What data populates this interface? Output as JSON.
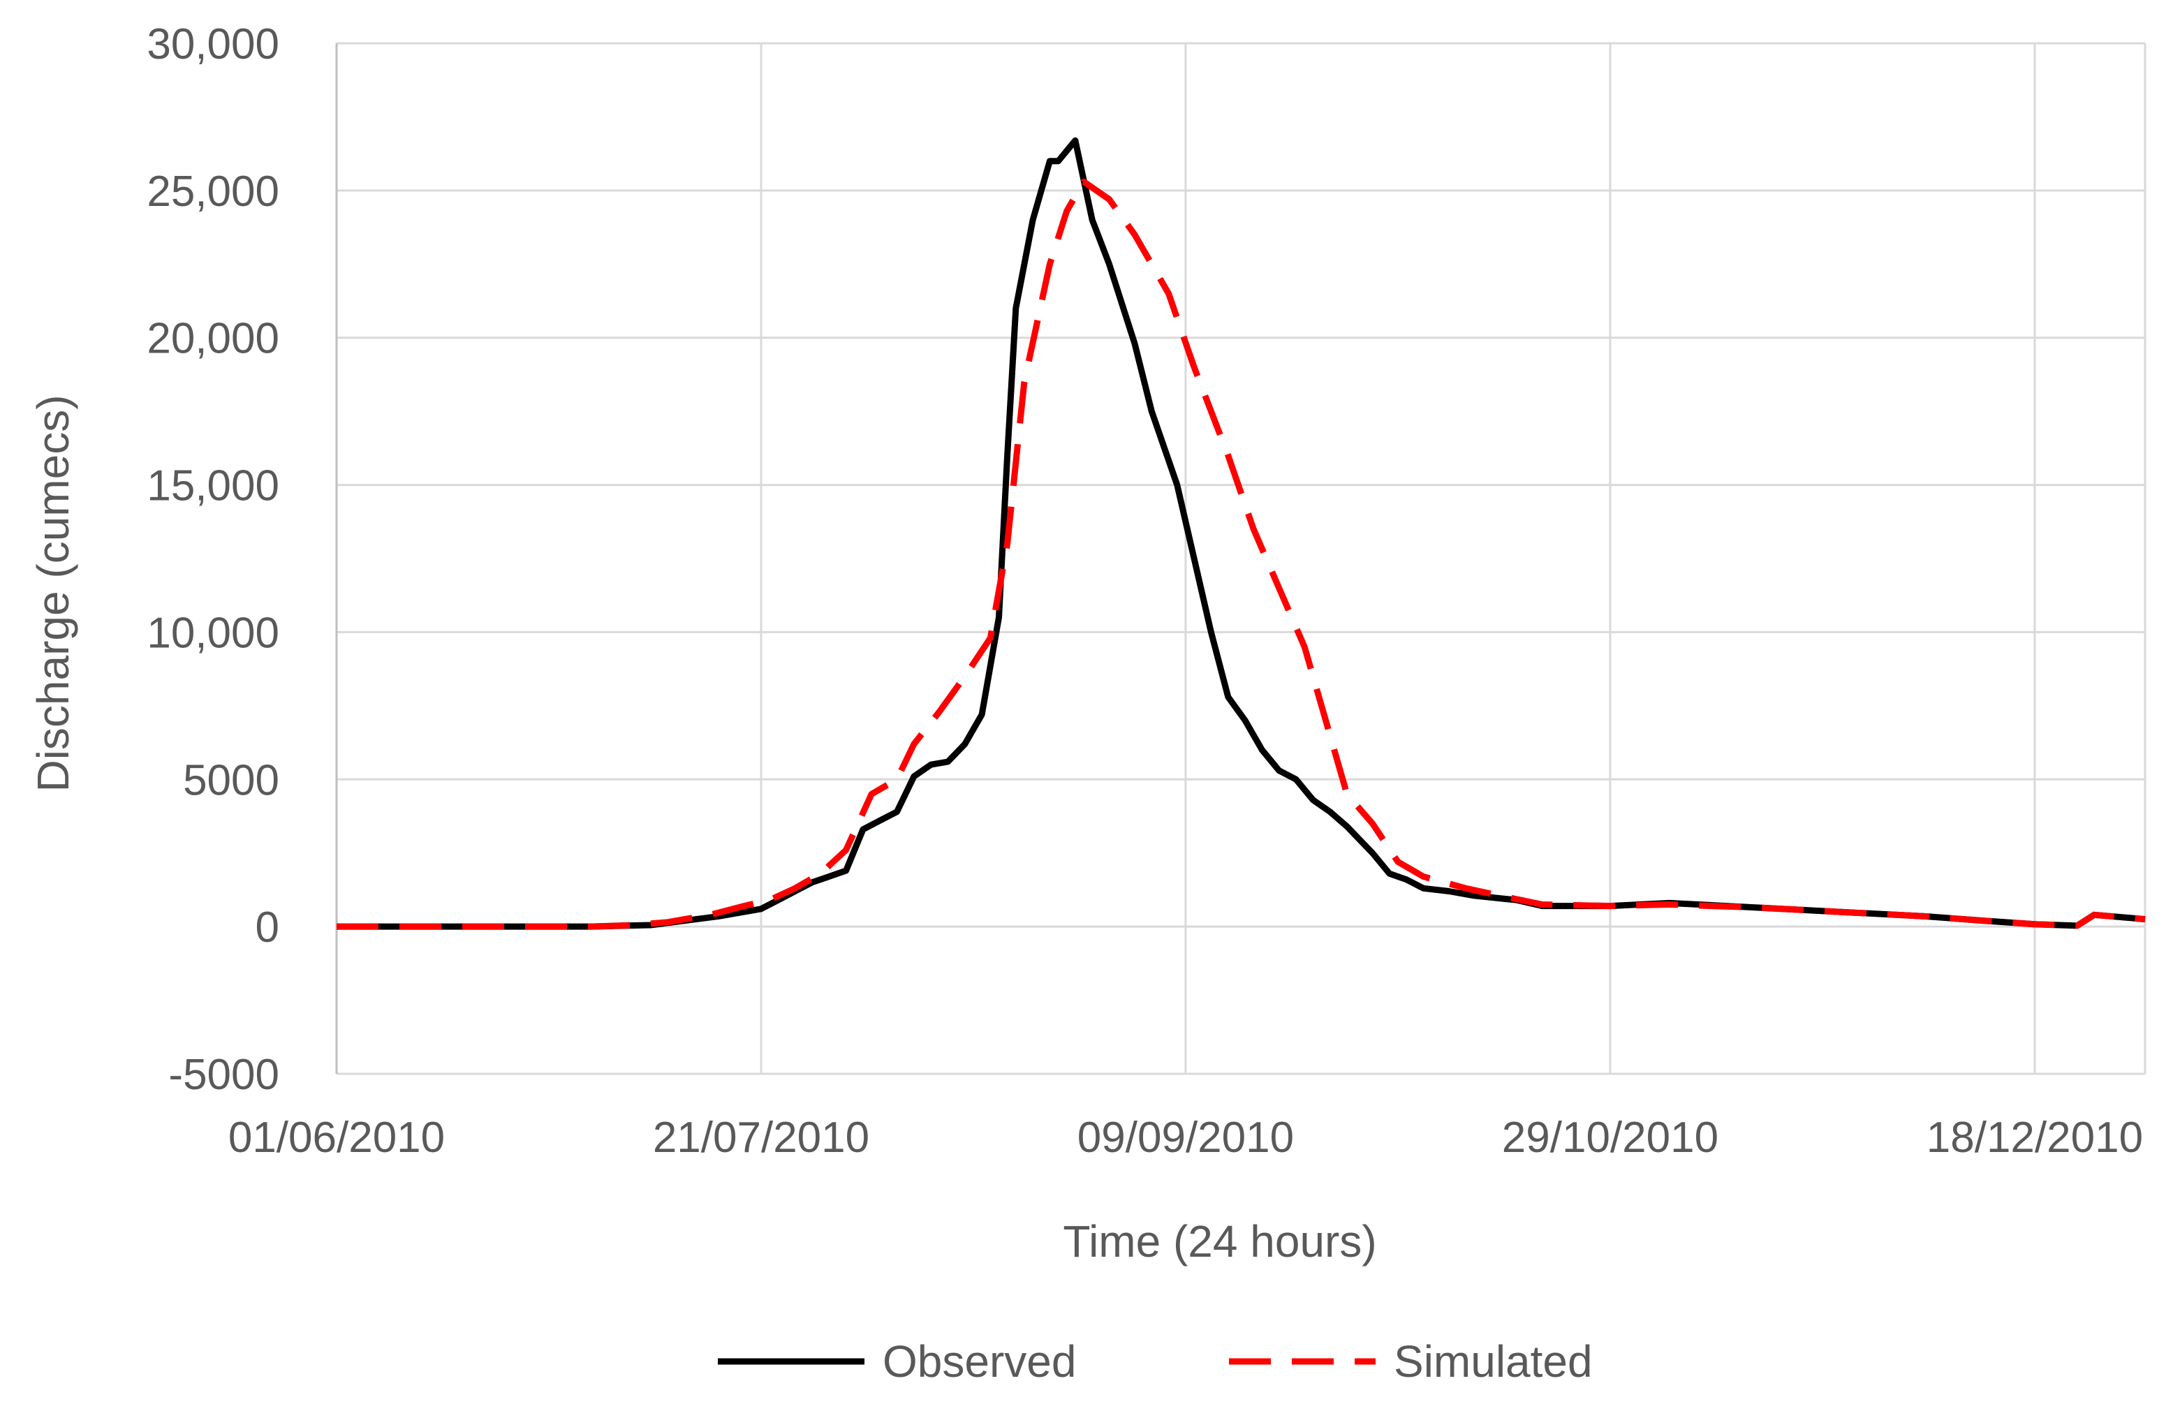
{
  "chart_data": {
    "type": "line",
    "title": "",
    "xlabel": "Time (24 hours)",
    "ylabel": "Discharge (cumecs)",
    "xlim": [
      "2010-06-01",
      "2010-12-31"
    ],
    "ylim": [
      -5000,
      30000
    ],
    "x_ticks": [
      "2010-06-01",
      "2010-07-21",
      "2010-09-09",
      "2010-10-29",
      "2010-12-18"
    ],
    "x_tick_labels": [
      "01/06/2010",
      "21/07/2010",
      "09/09/2010",
      "29/10/2010",
      "18/12/2010"
    ],
    "y_ticks": [
      -5000,
      0,
      5000,
      10000,
      15000,
      20000,
      25000,
      30000
    ],
    "y_tick_labels": [
      "-5000",
      "0",
      "5000",
      "10,000",
      "15,000",
      "20,000",
      "25,000",
      "30,000"
    ],
    "grid": true,
    "legend_position": "bottom",
    "legend_label": "",
    "series": [
      {
        "name": "Observed",
        "color": "#000000",
        "dash": "solid",
        "points": [
          [
            "2010-06-01",
            0
          ],
          [
            "2010-07-01",
            0
          ],
          [
            "2010-07-08",
            50
          ],
          [
            "2010-07-12",
            200
          ],
          [
            "2010-07-16",
            350
          ],
          [
            "2010-07-21",
            600
          ],
          [
            "2010-07-23",
            900
          ],
          [
            "2010-07-25",
            1200
          ],
          [
            "2010-07-27",
            1500
          ],
          [
            "2010-07-29",
            1700
          ],
          [
            "2010-07-31",
            1900
          ],
          [
            "2010-08-02",
            3300
          ],
          [
            "2010-08-04",
            3600
          ],
          [
            "2010-08-06",
            3900
          ],
          [
            "2010-08-08",
            5100
          ],
          [
            "2010-08-10",
            5500
          ],
          [
            "2010-08-12",
            5600
          ],
          [
            "2010-08-14",
            6200
          ],
          [
            "2010-08-16",
            7200
          ],
          [
            "2010-08-18",
            10500
          ],
          [
            "2010-08-19",
            16000
          ],
          [
            "2010-08-20",
            21000
          ],
          [
            "2010-08-22",
            24000
          ],
          [
            "2010-08-24",
            26000
          ],
          [
            "2010-08-25",
            26000
          ],
          [
            "2010-08-27",
            26700
          ],
          [
            "2010-08-29",
            24000
          ],
          [
            "2010-08-31",
            22500
          ],
          [
            "2010-09-03",
            19800
          ],
          [
            "2010-09-05",
            17500
          ],
          [
            "2010-09-08",
            15000
          ],
          [
            "2010-09-10",
            12500
          ],
          [
            "2010-09-12",
            10000
          ],
          [
            "2010-09-14",
            7800
          ],
          [
            "2010-09-16",
            7000
          ],
          [
            "2010-09-18",
            6000
          ],
          [
            "2010-09-20",
            5300
          ],
          [
            "2010-09-22",
            5000
          ],
          [
            "2010-09-24",
            4300
          ],
          [
            "2010-09-26",
            3900
          ],
          [
            "2010-09-28",
            3400
          ],
          [
            "2010-10-01",
            2500
          ],
          [
            "2010-10-03",
            1800
          ],
          [
            "2010-10-05",
            1600
          ],
          [
            "2010-10-07",
            1300
          ],
          [
            "2010-10-10",
            1200
          ],
          [
            "2010-10-13",
            1050
          ],
          [
            "2010-10-18",
            900
          ],
          [
            "2010-10-21",
            700
          ],
          [
            "2010-10-29",
            700
          ],
          [
            "2010-11-05",
            800
          ],
          [
            "2010-11-15",
            650
          ],
          [
            "2010-11-25",
            500
          ],
          [
            "2010-12-05",
            350
          ],
          [
            "2010-12-12",
            200
          ],
          [
            "2010-12-18",
            80
          ],
          [
            "2010-12-23",
            30
          ],
          [
            "2010-12-25",
            400
          ],
          [
            "2010-12-31",
            250
          ]
        ]
      },
      {
        "name": "Simulated",
        "color": "#ff0000",
        "dash": "dashed",
        "points": [
          [
            "2010-06-01",
            0
          ],
          [
            "2010-07-01",
            0
          ],
          [
            "2010-07-06",
            50
          ],
          [
            "2010-07-10",
            150
          ],
          [
            "2010-07-15",
            400
          ],
          [
            "2010-07-19",
            700
          ],
          [
            "2010-07-22",
            900
          ],
          [
            "2010-07-25",
            1300
          ],
          [
            "2010-07-28",
            1800
          ],
          [
            "2010-07-31",
            2600
          ],
          [
            "2010-08-03",
            4500
          ],
          [
            "2010-08-06",
            5000
          ],
          [
            "2010-08-08",
            6200
          ],
          [
            "2010-08-11",
            7300
          ],
          [
            "2010-08-14",
            8500
          ],
          [
            "2010-08-17",
            9800
          ],
          [
            "2010-08-19",
            13000
          ],
          [
            "2010-08-21",
            18500
          ],
          [
            "2010-08-24",
            22500
          ],
          [
            "2010-08-26",
            24300
          ],
          [
            "2010-08-28",
            25300
          ],
          [
            "2010-08-31",
            24700
          ],
          [
            "2010-09-03",
            23500
          ],
          [
            "2010-09-07",
            21500
          ],
          [
            "2010-09-10",
            19000
          ],
          [
            "2010-09-14",
            16000
          ],
          [
            "2010-09-17",
            13500
          ],
          [
            "2010-09-20",
            11500
          ],
          [
            "2010-09-23",
            9500
          ],
          [
            "2010-09-26",
            6500
          ],
          [
            "2010-09-28",
            4500
          ],
          [
            "2010-10-01",
            3500
          ],
          [
            "2010-10-04",
            2200
          ],
          [
            "2010-10-07",
            1700
          ],
          [
            "2010-10-12",
            1300
          ],
          [
            "2010-10-16",
            1050
          ],
          [
            "2010-10-21",
            750
          ],
          [
            "2010-10-29",
            700
          ],
          [
            "2010-11-05",
            750
          ],
          [
            "2010-11-15",
            650
          ],
          [
            "2010-11-25",
            500
          ],
          [
            "2010-12-05",
            350
          ],
          [
            "2010-12-12",
            200
          ],
          [
            "2010-12-18",
            80
          ],
          [
            "2010-12-23",
            30
          ],
          [
            "2010-12-25",
            400
          ],
          [
            "2010-12-31",
            250
          ]
        ]
      }
    ]
  }
}
